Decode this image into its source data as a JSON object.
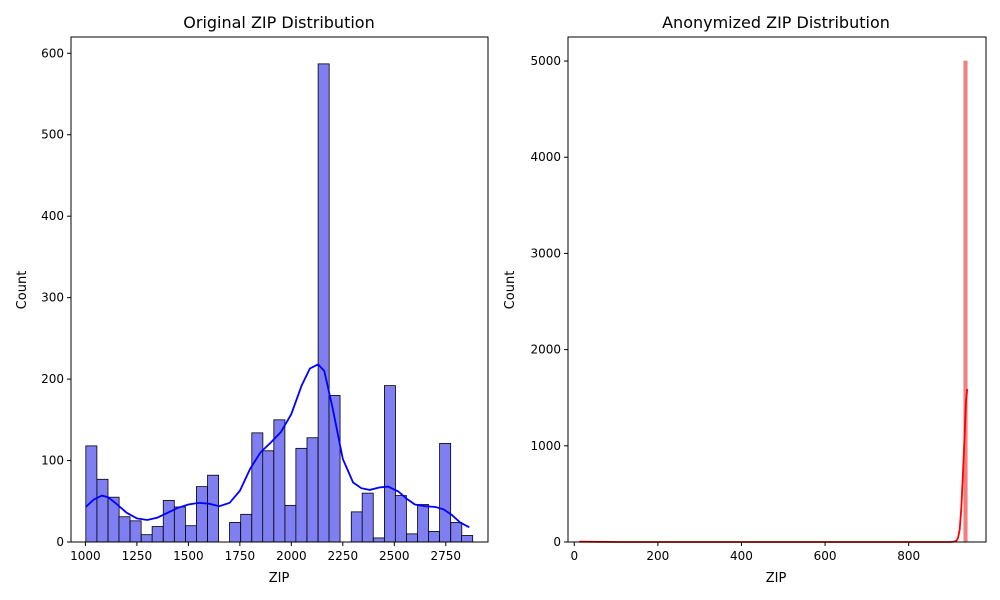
{
  "chart_data": [
    {
      "type": "bar",
      "title": "Original ZIP Distribution",
      "xlabel": "ZIP",
      "ylabel": "Count",
      "xlim": [
        930,
        2955
      ],
      "ylim": [
        0,
        620
      ],
      "xticks": [
        1000,
        1250,
        1500,
        1750,
        2000,
        2250,
        2500,
        2750
      ],
      "yticks": [
        0,
        100,
        200,
        300,
        400,
        500,
        600
      ],
      "bar_color": "#7f7ff1",
      "edge_color": "#000000",
      "line_color": "#0000ff",
      "bin_width": 53.7,
      "bins": [
        {
          "x": 1002,
          "count": 118
        },
        {
          "x": 1056,
          "count": 77
        },
        {
          "x": 1110,
          "count": 55
        },
        {
          "x": 1163,
          "count": 31
        },
        {
          "x": 1217,
          "count": 26
        },
        {
          "x": 1271,
          "count": 9
        },
        {
          "x": 1324,
          "count": 19
        },
        {
          "x": 1378,
          "count": 51
        },
        {
          "x": 1432,
          "count": 43
        },
        {
          "x": 1486,
          "count": 20
        },
        {
          "x": 1539,
          "count": 68
        },
        {
          "x": 1593,
          "count": 82
        },
        {
          "x": 1647,
          "count": 0
        },
        {
          "x": 1700,
          "count": 24
        },
        {
          "x": 1754,
          "count": 34
        },
        {
          "x": 1808,
          "count": 134
        },
        {
          "x": 1861,
          "count": 112
        },
        {
          "x": 1915,
          "count": 150
        },
        {
          "x": 1969,
          "count": 45
        },
        {
          "x": 2022,
          "count": 115
        },
        {
          "x": 2076,
          "count": 128
        },
        {
          "x": 2130,
          "count": 587
        },
        {
          "x": 2183,
          "count": 180
        },
        {
          "x": 2237,
          "count": 0
        },
        {
          "x": 2291,
          "count": 37
        },
        {
          "x": 2344,
          "count": 60
        },
        {
          "x": 2398,
          "count": 5
        },
        {
          "x": 2452,
          "count": 192
        },
        {
          "x": 2505,
          "count": 57
        },
        {
          "x": 2559,
          "count": 10
        },
        {
          "x": 2613,
          "count": 46
        },
        {
          "x": 2666,
          "count": 13
        },
        {
          "x": 2720,
          "count": 121
        },
        {
          "x": 2774,
          "count": 24
        },
        {
          "x": 2827,
          "count": 8
        }
      ],
      "kde": [
        [
          1002,
          43
        ],
        [
          1040,
          52
        ],
        [
          1080,
          57
        ],
        [
          1110,
          55
        ],
        [
          1150,
          47
        ],
        [
          1200,
          36
        ],
        [
          1250,
          29
        ],
        [
          1300,
          27
        ],
        [
          1350,
          30
        ],
        [
          1400,
          36
        ],
        [
          1450,
          42
        ],
        [
          1500,
          46
        ],
        [
          1550,
          48
        ],
        [
          1600,
          47
        ],
        [
          1650,
          44
        ],
        [
          1700,
          48
        ],
        [
          1750,
          63
        ],
        [
          1800,
          90
        ],
        [
          1850,
          110
        ],
        [
          1900,
          122
        ],
        [
          1950,
          135
        ],
        [
          2000,
          157
        ],
        [
          2050,
          192
        ],
        [
          2090,
          213
        ],
        [
          2130,
          218
        ],
        [
          2160,
          210
        ],
        [
          2200,
          165
        ],
        [
          2250,
          102
        ],
        [
          2300,
          73
        ],
        [
          2340,
          66
        ],
        [
          2380,
          64
        ],
        [
          2430,
          67
        ],
        [
          2470,
          68
        ],
        [
          2520,
          62
        ],
        [
          2560,
          53
        ],
        [
          2600,
          46
        ],
        [
          2650,
          44
        ],
        [
          2700,
          43
        ],
        [
          2740,
          40
        ],
        [
          2780,
          33
        ],
        [
          2820,
          24
        ],
        [
          2864,
          18
        ]
      ]
    },
    {
      "type": "bar",
      "title": "Anonymized ZIP Distribution",
      "xlabel": "ZIP",
      "ylabel": "Count",
      "xlim": [
        -15,
        985
      ],
      "ylim": [
        0,
        5250
      ],
      "xticks": [
        0,
        200,
        400,
        600,
        800
      ],
      "yticks": [
        0,
        1000,
        2000,
        3000,
        4000,
        5000
      ],
      "bar_color": "#f08080",
      "edge_color": "#f08080",
      "line_color": "#ff0000",
      "bin_width": 8,
      "bins": [
        {
          "x": 932,
          "count": 5000
        }
      ],
      "kde": [
        [
          12,
          3
        ],
        [
          100,
          0
        ],
        [
          200,
          0
        ],
        [
          300,
          0
        ],
        [
          400,
          0
        ],
        [
          500,
          0
        ],
        [
          600,
          0
        ],
        [
          700,
          0
        ],
        [
          800,
          0
        ],
        [
          900,
          0
        ],
        [
          908,
          4
        ],
        [
          914,
          12
        ],
        [
          918,
          40
        ],
        [
          922,
          130
        ],
        [
          926,
          350
        ],
        [
          930,
          720
        ],
        [
          934,
          1130
        ],
        [
          937,
          1450
        ],
        [
          940,
          1590
        ]
      ]
    }
  ]
}
